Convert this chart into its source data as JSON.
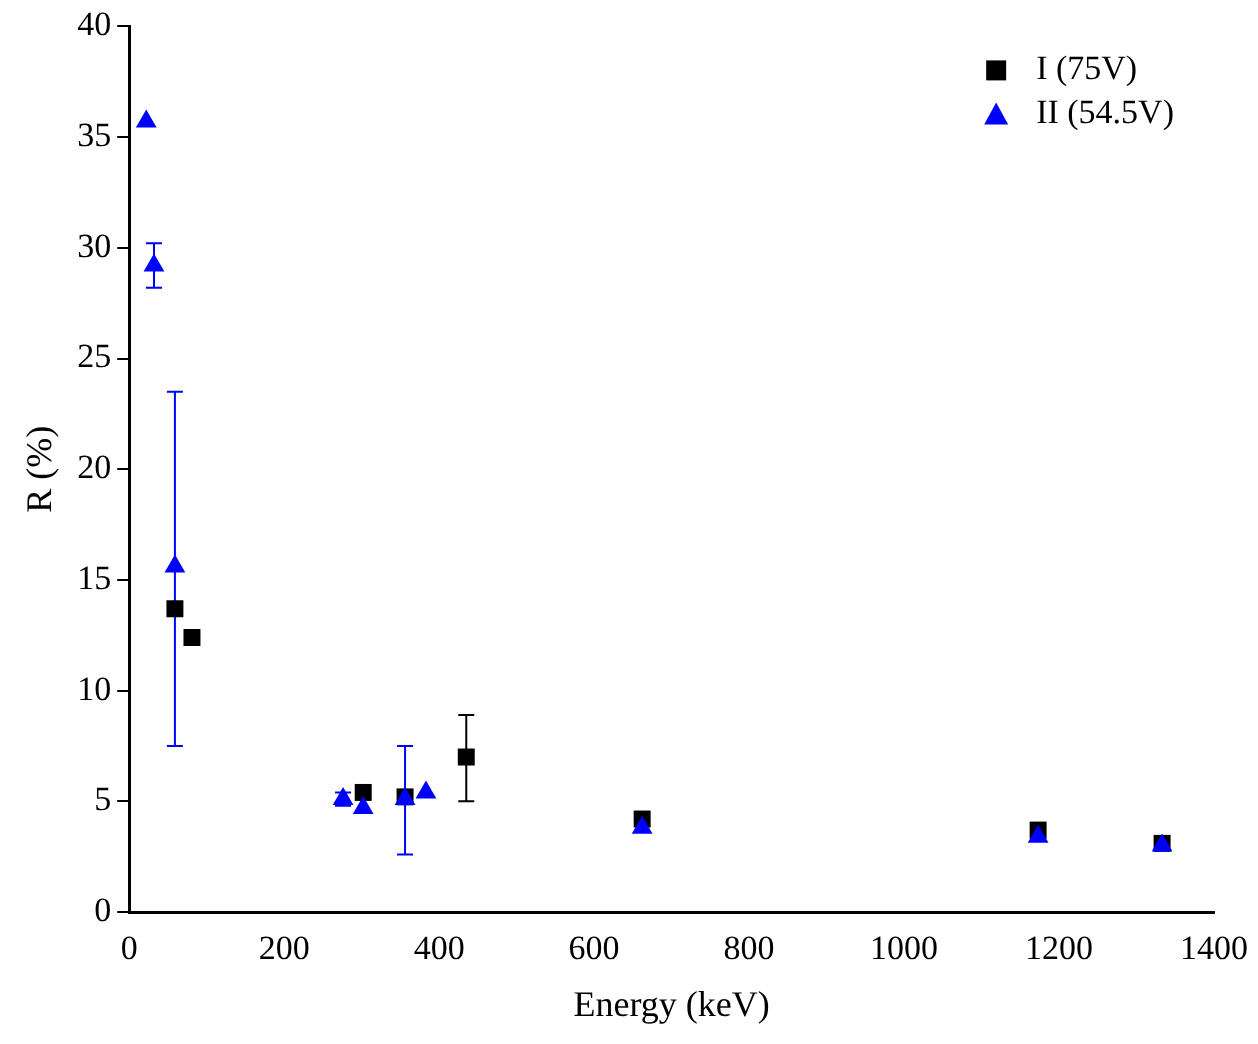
{
  "chart_data": {
    "type": "scatter",
    "xlabel": "Energy (keV)",
    "ylabel": "R (%)",
    "xlim": [
      0,
      1400
    ],
    "xticks": [
      0,
      200,
      400,
      600,
      800,
      1000,
      1200,
      1400
    ],
    "ylim": [
      0,
      40
    ],
    "yticks": [
      0,
      5,
      10,
      15,
      20,
      25,
      30,
      35,
      40
    ],
    "grid": false,
    "legend": "top right",
    "series": [
      {
        "name": "I (75V)",
        "color": "#000000",
        "marker": "square",
        "x": [
          59,
          81,
          302,
          356,
          435,
          662,
          1173,
          1333
        ],
        "values": [
          13.7,
          12.4,
          5.4,
          5.2,
          7.0,
          4.2,
          3.7,
          3.1
        ],
        "errors": [
          null,
          null,
          null,
          null,
          [
            5.0,
            8.9
          ],
          null,
          null,
          null
        ]
      },
      {
        "name": "II (54.5V)",
        "color": "#0000ff",
        "marker": "triangle",
        "x": [
          22,
          32,
          59,
          276,
          302,
          356,
          383,
          662,
          1173,
          1333
        ],
        "values": [
          35.7,
          29.2,
          15.6,
          5.1,
          4.7,
          5.1,
          5.4,
          3.8,
          3.4,
          3.0
        ],
        "errors": [
          null,
          [
            28.2,
            30.2
          ],
          [
            7.5,
            23.5
          ],
          [
            4.8,
            5.4
          ],
          null,
          [
            2.6,
            7.5
          ],
          null,
          null,
          null,
          null
        ]
      }
    ]
  }
}
